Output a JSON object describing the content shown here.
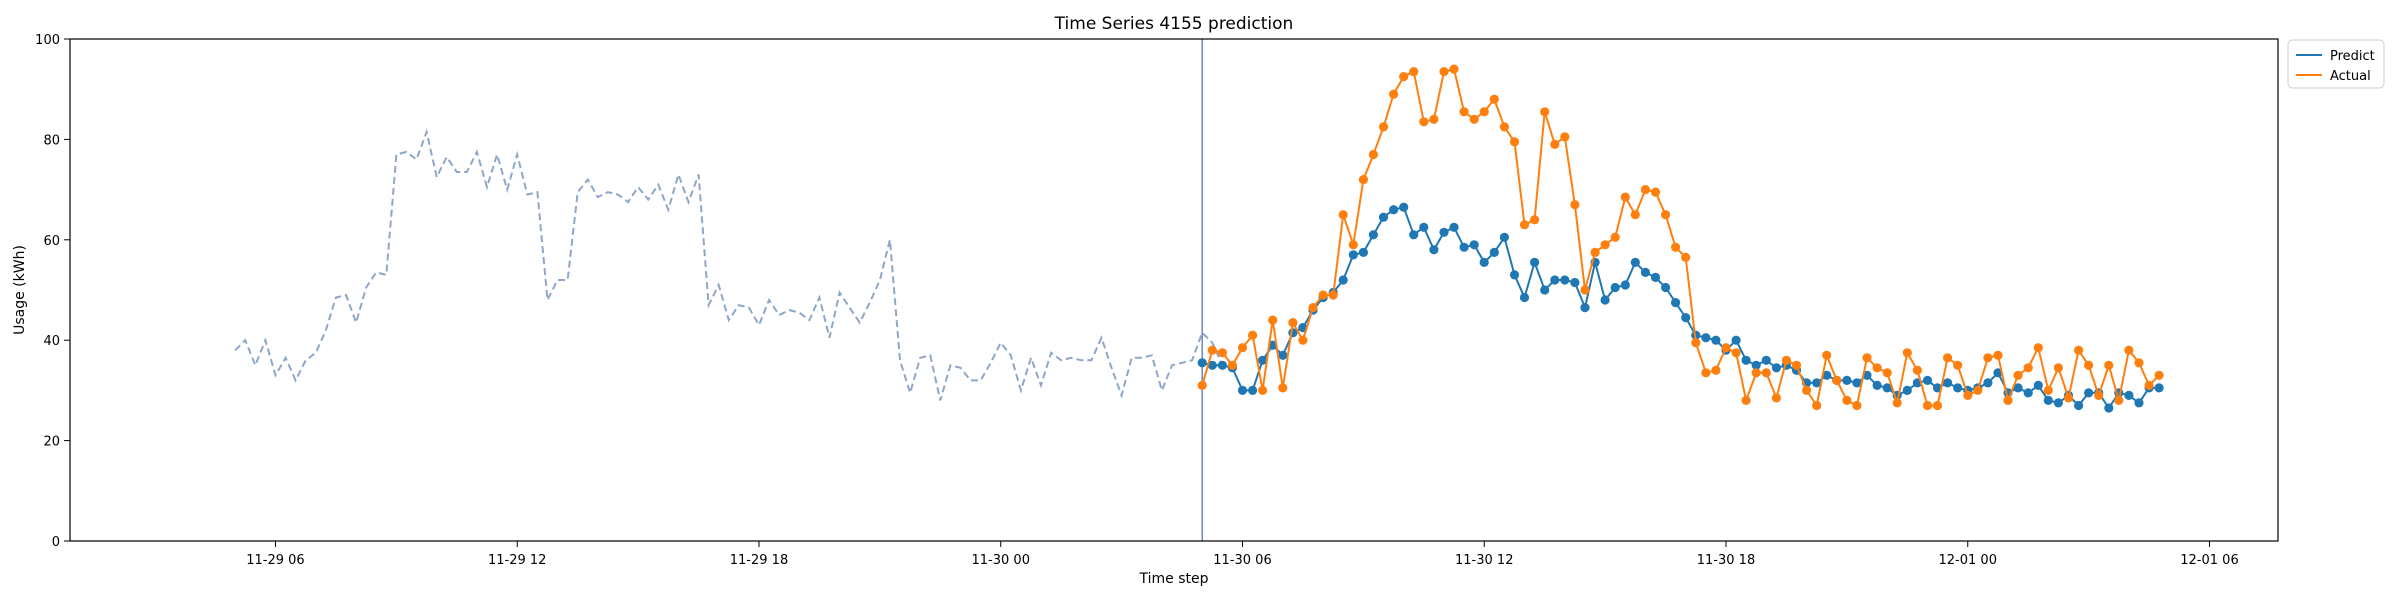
{
  "chart_data": {
    "type": "line",
    "title": "Time Series 4155 prediction",
    "xlabel": "Time step",
    "ylabel": "Usage (kWh)",
    "ylim": [
      0,
      100
    ],
    "y_ticks": [
      0,
      20,
      40,
      60,
      80,
      100
    ],
    "x_tick_labels": [
      "11-29 06",
      "11-29 12",
      "11-29 18",
      "11-30 00",
      "11-30 06",
      "11-30 12",
      "11-30 18",
      "12-01 00",
      "12-01 06"
    ],
    "x_tick_hours": [
      6,
      12,
      18,
      24,
      30,
      36,
      42,
      48,
      54
    ],
    "x_range_hours": [
      0.9,
      55.7
    ],
    "x_hours_note_origin": "11-29 00",
    "step_minutes": 15,
    "legend": {
      "position": "top-right",
      "entries": [
        "Predict",
        "Actual"
      ]
    },
    "colors": {
      "history": "#8ea7c8",
      "predict": "#1f77b4",
      "actual": "#ff7f0e",
      "divider": "#6e87c0"
    },
    "history": {
      "start": "11-29 05:00",
      "values": [
        38,
        40,
        35,
        40,
        33,
        36.5,
        32,
        36,
        37.5,
        42,
        48.5,
        49,
        43.5,
        50.5,
        53.5,
        53,
        77,
        77.5,
        76,
        81.5,
        72.5,
        76.5,
        73.5,
        73.5,
        77.5,
        70.5,
        77,
        70,
        77,
        69,
        69.5,
        48,
        52,
        52,
        69.5,
        72,
        68.5,
        69.5,
        69,
        67.5,
        70.5,
        68,
        71,
        66,
        73,
        67.5,
        73,
        47,
        51,
        44,
        47,
        46.5,
        43,
        48,
        45,
        46,
        45.5,
        44,
        48.5,
        40.5,
        49.5,
        46.5,
        43.5,
        47.5,
        52,
        60,
        36,
        29.5,
        36.5,
        37,
        28,
        35,
        34.5,
        32,
        32,
        35.5,
        39.5,
        37,
        30,
        36.5,
        31,
        37.5,
        36,
        36.5,
        36,
        36,
        40.5,
        34.5,
        29,
        36.5,
        36.5,
        37,
        30,
        35,
        35.5,
        36,
        41.5,
        39.5,
        35
      ]
    },
    "divider_at": "11-30 05:00",
    "series": [
      {
        "name": "Predict",
        "start": "11-30 05:00",
        "values": [
          35.5,
          35,
          35,
          34.5,
          30,
          30,
          36,
          39,
          37,
          41.5,
          42.5,
          46,
          48.5,
          49.5,
          52,
          57,
          57.5,
          61,
          64.5,
          66,
          66.5,
          61,
          62.5,
          58,
          61.5,
          62.5,
          58.5,
          59,
          55.5,
          57.5,
          60.5,
          53,
          48.5,
          55.5,
          50,
          52,
          52,
          51.5,
          46.5,
          55.5,
          48,
          50.5,
          51,
          55.5,
          53.5,
          52.5,
          50.5,
          47.5,
          44.5,
          41,
          40.5,
          40,
          38,
          40,
          36,
          35,
          36,
          34.5,
          35,
          34,
          31.5,
          31.5,
          33,
          32,
          32,
          31.5,
          33,
          31,
          30.5,
          29,
          30,
          31.5,
          32,
          30.5,
          31.5,
          30.5,
          30,
          30.5,
          31.5,
          33.5,
          29.5,
          30.5,
          29.5,
          31,
          28,
          27.5,
          29,
          27,
          29.5,
          29.5,
          26.5,
          29.5,
          29,
          27.5,
          30.5,
          30.5
        ]
      },
      {
        "name": "Actual",
        "start": "11-30 05:00",
        "values": [
          31,
          38,
          37.5,
          35,
          38.5,
          41,
          30,
          44,
          30.5,
          43.5,
          40,
          46.5,
          49,
          49,
          65,
          59,
          72,
          77,
          82.5,
          89,
          92.5,
          93.5,
          83.5,
          84,
          93.5,
          94,
          85.5,
          84,
          85.5,
          88,
          82.5,
          79.5,
          63,
          64,
          85.5,
          79,
          80.5,
          67,
          50,
          57.5,
          59,
          60.5,
          68.5,
          65,
          70,
          69.5,
          65,
          58.5,
          56.5,
          39.5,
          33.5,
          34,
          38.5,
          37.5,
          28,
          33.5,
          33.5,
          28.5,
          36,
          35,
          30,
          27,
          37,
          32,
          28,
          27,
          36.5,
          34.5,
          33.5,
          27.5,
          37.5,
          34,
          27,
          27,
          36.5,
          35,
          29,
          30,
          36.5,
          37,
          28,
          33,
          34.5,
          38.5,
          30,
          34.5,
          28.5,
          38,
          35,
          29,
          35,
          28,
          38,
          35.5,
          31,
          33
        ]
      }
    ]
  }
}
